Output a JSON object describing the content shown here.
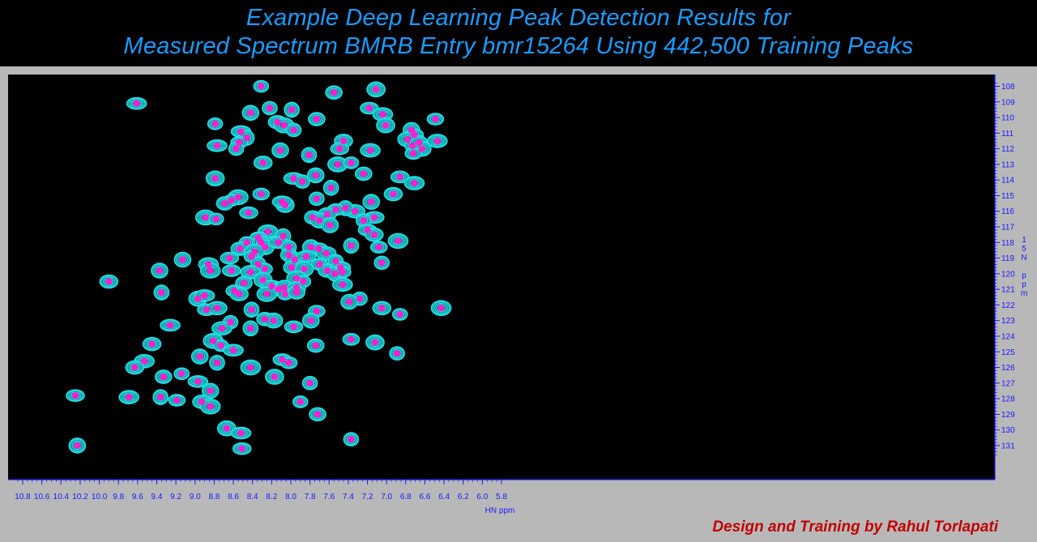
{
  "title_line1": "Example Deep Learning Peak Detection Results for",
  "title_line2": "Measured Spectrum BMRB Entry bmr15264 Using 442,500 Training Peaks",
  "credit": "Design and Training by Rahul Torlapati",
  "colors": {
    "background": "#000000",
    "axis": "#1a1aff",
    "contour": "#22e8ee",
    "peak_marker": "#ff1fd0",
    "title": "#1a9cff",
    "credit": "#c00000"
  },
  "chart_data": {
    "type": "scatter",
    "title": "Example Deep Learning Peak Detection Results for Measured Spectrum BMRB Entry bmr15264 Using 442,500 Training Peaks",
    "xlabel": "HN ppm",
    "ylabel_lines": [
      "1",
      "5",
      "N",
      "",
      "p",
      "p",
      "m"
    ],
    "x_reversed": true,
    "y_reversed": true,
    "xlim": [
      10.9,
      5.8
    ],
    "ylim": [
      107.6,
      131.8
    ],
    "x_ticks": [
      "10.8",
      "10.6",
      "10.4",
      "10.2",
      "10.0",
      "9.8",
      "9.6",
      "9.4",
      "9.2",
      "9.0",
      "8.8",
      "8.6",
      "8.4",
      "8.2",
      "8.0",
      "7.8",
      "7.6",
      "7.4",
      "7.2",
      "7.0",
      "6.8",
      "6.6",
      "6.4",
      "6.2",
      "6.0",
      "5.8"
    ],
    "y_ticks": [
      "108",
      "109",
      "110",
      "111",
      "112",
      "113",
      "114",
      "115",
      "116",
      "117",
      "118",
      "119",
      "120",
      "121",
      "122",
      "123",
      "124",
      "125",
      "126",
      "127",
      "128",
      "129",
      "130",
      "131"
    ],
    "series": [
      {
        "name": "",
        "points": [
          [
            8.31,
            108.0
          ],
          [
            7.55,
            108.4
          ],
          [
            7.11,
            108.2
          ],
          [
            9.61,
            109.1
          ],
          [
            8.22,
            109.4
          ],
          [
            8.42,
            109.7
          ],
          [
            7.18,
            109.4
          ],
          [
            7.04,
            109.8
          ],
          [
            7.99,
            109.5
          ],
          [
            6.49,
            110.1
          ],
          [
            8.14,
            110.3
          ],
          [
            8.07,
            110.5
          ],
          [
            8.79,
            110.4
          ],
          [
            7.73,
            110.1
          ],
          [
            7.01,
            110.5
          ],
          [
            8.52,
            110.9
          ],
          [
            7.97,
            110.8
          ],
          [
            6.74,
            110.8
          ],
          [
            6.71,
            111.1
          ],
          [
            6.47,
            111.5
          ],
          [
            8.46,
            111.3
          ],
          [
            8.54,
            111.6
          ],
          [
            7.45,
            111.5
          ],
          [
            6.78,
            111.4
          ],
          [
            6.73,
            111.8
          ],
          [
            6.66,
            111.6
          ],
          [
            6.63,
            112.0
          ],
          [
            8.77,
            111.8
          ],
          [
            8.57,
            112.0
          ],
          [
            8.11,
            112.1
          ],
          [
            7.49,
            112.0
          ],
          [
            7.17,
            112.1
          ],
          [
            7.81,
            112.4
          ],
          [
            6.72,
            112.3
          ],
          [
            8.29,
            112.9
          ],
          [
            7.51,
            113.0
          ],
          [
            7.37,
            112.9
          ],
          [
            7.24,
            113.6
          ],
          [
            8.79,
            113.9
          ],
          [
            7.97,
            113.9
          ],
          [
            7.88,
            114.1
          ],
          [
            7.74,
            113.7
          ],
          [
            6.86,
            113.8
          ],
          [
            6.71,
            114.2
          ],
          [
            7.58,
            114.5
          ],
          [
            8.31,
            114.9
          ],
          [
            6.93,
            114.9
          ],
          [
            8.55,
            115.1
          ],
          [
            8.62,
            115.3
          ],
          [
            8.69,
            115.5
          ],
          [
            8.06,
            115.6
          ],
          [
            8.09,
            115.4
          ],
          [
            7.73,
            115.2
          ],
          [
            7.16,
            115.4
          ],
          [
            8.44,
            116.1
          ],
          [
            7.33,
            116.0
          ],
          [
            7.43,
            115.8
          ],
          [
            7.53,
            115.9
          ],
          [
            7.62,
            116.2
          ],
          [
            8.89,
            116.4
          ],
          [
            8.78,
            116.5
          ],
          [
            7.77,
            116.4
          ],
          [
            7.7,
            116.6
          ],
          [
            7.13,
            116.4
          ],
          [
            7.24,
            116.6
          ],
          [
            7.59,
            116.9
          ],
          [
            7.2,
            117.2
          ],
          [
            8.24,
            117.3
          ],
          [
            8.08,
            117.6
          ],
          [
            8.34,
            117.7
          ],
          [
            7.13,
            117.5
          ],
          [
            6.88,
            117.9
          ],
          [
            8.46,
            118.0
          ],
          [
            8.31,
            118.0
          ],
          [
            8.27,
            118.3
          ],
          [
            8.13,
            118.0
          ],
          [
            8.02,
            118.3
          ],
          [
            7.79,
            118.3
          ],
          [
            7.71,
            118.4
          ],
          [
            7.63,
            118.7
          ],
          [
            7.37,
            118.2
          ],
          [
            7.08,
            118.3
          ],
          [
            8.53,
            118.4
          ],
          [
            8.38,
            118.6
          ],
          [
            8.41,
            118.9
          ],
          [
            8.02,
            118.8
          ],
          [
            7.96,
            119.1
          ],
          [
            7.84,
            118.9
          ],
          [
            7.53,
            119.2
          ],
          [
            9.13,
            119.1
          ],
          [
            8.64,
            119.0
          ],
          [
            8.86,
            119.4
          ],
          [
            8.34,
            119.4
          ],
          [
            7.7,
            119.4
          ],
          [
            7.62,
            119.8
          ],
          [
            8.84,
            119.8
          ],
          [
            8.27,
            119.7
          ],
          [
            7.99,
            119.6
          ],
          [
            7.86,
            119.7
          ],
          [
            7.48,
            119.6
          ],
          [
            7.05,
            119.3
          ],
          [
            9.37,
            119.8
          ],
          [
            8.62,
            119.8
          ],
          [
            8.42,
            119.9
          ],
          [
            7.54,
            120.0
          ],
          [
            7.46,
            119.9
          ],
          [
            9.9,
            120.5
          ],
          [
            7.94,
            120.3
          ],
          [
            7.87,
            120.5
          ],
          [
            8.49,
            120.6
          ],
          [
            8.29,
            120.4
          ],
          [
            8.2,
            120.8
          ],
          [
            8.13,
            121.0
          ],
          [
            8.07,
            120.9
          ],
          [
            7.94,
            120.9
          ],
          [
            7.46,
            120.7
          ],
          [
            9.35,
            121.2
          ],
          [
            8.59,
            121.1
          ],
          [
            8.54,
            121.3
          ],
          [
            8.25,
            121.3
          ],
          [
            8.06,
            121.3
          ],
          [
            7.94,
            121.2
          ],
          [
            8.97,
            121.6
          ],
          [
            8.9,
            121.4
          ],
          [
            7.28,
            121.6
          ],
          [
            7.39,
            121.8
          ],
          [
            8.88,
            122.3
          ],
          [
            8.77,
            122.2
          ],
          [
            8.41,
            122.3
          ],
          [
            7.73,
            122.4
          ],
          [
            7.05,
            122.2
          ],
          [
            6.43,
            122.2
          ],
          [
            6.86,
            122.6
          ],
          [
            8.27,
            122.9
          ],
          [
            8.18,
            123.0
          ],
          [
            9.26,
            123.3
          ],
          [
            8.63,
            123.1
          ],
          [
            7.79,
            123.0
          ],
          [
            7.97,
            123.4
          ],
          [
            8.72,
            123.5
          ],
          [
            8.42,
            123.5
          ],
          [
            7.37,
            124.2
          ],
          [
            9.45,
            124.5
          ],
          [
            8.81,
            124.3
          ],
          [
            8.73,
            124.6
          ],
          [
            7.74,
            124.6
          ],
          [
            7.12,
            124.4
          ],
          [
            8.6,
            124.9
          ],
          [
            6.89,
            125.1
          ],
          [
            8.95,
            125.3
          ],
          [
            8.09,
            125.5
          ],
          [
            9.53,
            125.6
          ],
          [
            8.77,
            125.7
          ],
          [
            8.02,
            125.7
          ],
          [
            9.63,
            126.0
          ],
          [
            8.42,
            126.0
          ],
          [
            9.14,
            126.4
          ],
          [
            9.33,
            126.6
          ],
          [
            8.17,
            126.6
          ],
          [
            8.97,
            126.9
          ],
          [
            7.8,
            127.0
          ],
          [
            8.84,
            127.5
          ],
          [
            10.25,
            127.8
          ],
          [
            9.69,
            127.9
          ],
          [
            9.36,
            127.9
          ],
          [
            9.19,
            128.1
          ],
          [
            8.93,
            128.2
          ],
          [
            8.84,
            128.5
          ],
          [
            7.9,
            128.2
          ],
          [
            7.72,
            129.0
          ],
          [
            8.67,
            129.9
          ],
          [
            8.52,
            130.2
          ],
          [
            7.37,
            130.6
          ],
          [
            10.23,
            131.0
          ],
          [
            8.51,
            131.2
          ]
        ]
      }
    ]
  }
}
